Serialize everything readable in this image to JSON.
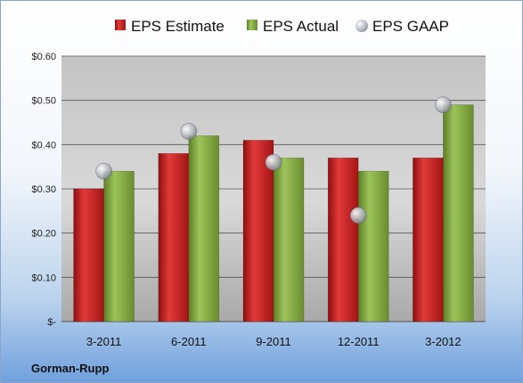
{
  "chart_data": {
    "type": "bar",
    "categories": [
      "3-2011",
      "6-2011",
      "9-2011",
      "12-2011",
      "3-2012"
    ],
    "series": [
      {
        "name": "EPS Estimate",
        "values": [
          0.3,
          0.38,
          0.41,
          0.37,
          0.37
        ],
        "color": "#cc1f1f",
        "kind": "bar"
      },
      {
        "name": "EPS Actual",
        "values": [
          0.34,
          0.42,
          0.37,
          0.34,
          0.49
        ],
        "color": "#7aa33a",
        "kind": "bar"
      },
      {
        "name": "EPS GAAP",
        "values": [
          0.34,
          0.43,
          0.36,
          0.24,
          0.49
        ],
        "color": "#b8bcc4",
        "kind": "marker"
      }
    ],
    "yticks": [
      0,
      0.1,
      0.2,
      0.3,
      0.4,
      0.5,
      0.6
    ],
    "ytick_labels": [
      "$-",
      "$0.10",
      "$0.20",
      "$0.30",
      "$0.40",
      "$0.50",
      "$0.60"
    ],
    "ylim": [
      0,
      0.6
    ],
    "grid": true,
    "legend": "top",
    "footer": "Gorman-Rupp"
  }
}
